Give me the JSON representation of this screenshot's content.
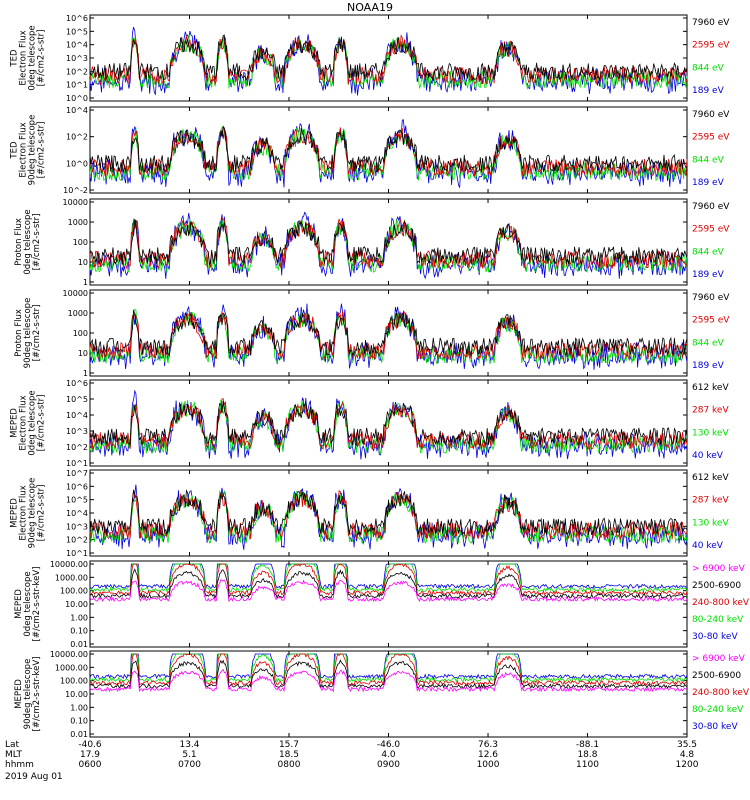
{
  "title": "NOAA19",
  "colors": {
    "black": "#000000",
    "red": "#e00000",
    "green": "#00e000",
    "blue": "#0000e0",
    "magenta": "#ff00ff"
  },
  "chart_data": [
    {
      "type": "line",
      "ylabel": [
        "TED",
        "Electron Flux",
        "0deg telescope",
        "[#/cm2-s-str]"
      ],
      "ytick_labels": [
        "10^6",
        "10^5",
        "10^4",
        "10^3",
        "10^2",
        "10^1",
        "10^0"
      ],
      "ylim_log10": [
        0,
        6
      ],
      "legend": [
        {
          "label": "7960 eV",
          "color": "black"
        },
        {
          "label": "2595 eV",
          "color": "red"
        },
        {
          "label": "844 eV",
          "color": "green"
        },
        {
          "label": "189 eV",
          "color": "blue"
        }
      ],
      "bumps": [
        {
          "t": 0.075,
          "w": 0.007,
          "peak": 2.5
        },
        {
          "t": 0.163,
          "w": 0.03,
          "peak": 2.3
        },
        {
          "t": 0.222,
          "w": 0.01,
          "peak": 2.5
        },
        {
          "t": 0.29,
          "w": 0.02,
          "peak": 1.6
        },
        {
          "t": 0.355,
          "w": 0.03,
          "peak": 2.3
        },
        {
          "t": 0.42,
          "w": 0.012,
          "peak": 2.4
        },
        {
          "t": 0.52,
          "w": 0.028,
          "peak": 2.3
        },
        {
          "t": 0.7,
          "w": 0.022,
          "peak": 2.0
        }
      ]
    },
    {
      "type": "line",
      "ylabel": [
        "TED",
        "Electron Flux",
        "90deg telescope",
        "[#/cm2-s-str]"
      ],
      "ytick_labels": [
        "10^4",
        "10^2",
        "10^0",
        "10^-2"
      ],
      "ylim_log10": [
        -2,
        4.5
      ],
      "legend": [
        {
          "label": "7960 eV",
          "color": "black"
        },
        {
          "label": "2595 eV",
          "color": "red"
        },
        {
          "label": "844 eV",
          "color": "green"
        },
        {
          "label": "189 eV",
          "color": "blue"
        }
      ]
    },
    {
      "type": "line",
      "ylabel": [
        "Proton Flux",
        "0deg telescope",
        "[#/cm2-s-str]"
      ],
      "ytick_labels": [
        "10000",
        "1000",
        "100",
        "10",
        "1"
      ],
      "ylim_log10": [
        0,
        4
      ],
      "legend": [
        {
          "label": "7960 eV",
          "color": "black"
        },
        {
          "label": "2595 eV",
          "color": "red"
        },
        {
          "label": "844 eV",
          "color": "green"
        },
        {
          "label": "189 eV",
          "color": "blue"
        }
      ]
    },
    {
      "type": "line",
      "ylabel": [
        "Proton Flux",
        "90deg telescope",
        "[#/cm2-s-str]"
      ],
      "ytick_labels": [
        "10000",
        "1000",
        "100",
        "10",
        "1"
      ],
      "ylim_log10": [
        0,
        4
      ],
      "legend": [
        {
          "label": "7960 eV",
          "color": "black"
        },
        {
          "label": "2595 eV",
          "color": "red"
        },
        {
          "label": "844 eV",
          "color": "green"
        },
        {
          "label": "189 eV",
          "color": "blue"
        }
      ]
    },
    {
      "type": "line",
      "ylabel": [
        "MEPED",
        "Electron Flux",
        "0deg telescope",
        "[#/cm2-s-str]"
      ],
      "ytick_labels": [
        "10^6",
        "10^5",
        "10^4",
        "10^3",
        "10^2",
        "10^1"
      ],
      "ylim_log10": [
        1,
        6
      ],
      "legend": [
        {
          "label": "612 keV",
          "color": "black"
        },
        {
          "label": "287 keV",
          "color": "red"
        },
        {
          "label": "130 keV",
          "color": "green"
        },
        {
          "label": "40 keV",
          "color": "blue"
        }
      ]
    },
    {
      "type": "line",
      "ylabel": [
        "MEPED",
        "Electron Flux",
        "90deg telescope",
        "[#/cm2-s-str]"
      ],
      "ytick_labels": [
        "10^7",
        "10^6",
        "10^5",
        "10^4",
        "10^3",
        "10^2",
        "10^1"
      ],
      "ylim_log10": [
        1,
        7
      ],
      "legend": [
        {
          "label": "612 keV",
          "color": "black"
        },
        {
          "label": "287 keV",
          "color": "red"
        },
        {
          "label": "130 keV",
          "color": "green"
        },
        {
          "label": "40 keV",
          "color": "blue"
        }
      ]
    },
    {
      "type": "line",
      "ylabel": [
        "MEPED",
        "0deg telescope",
        "[#/cm2-s-str-keV]"
      ],
      "ytick_labels": [
        "10000.00",
        "1000.00",
        "100.00",
        "10.00",
        "1.00",
        "0.10",
        "0.01"
      ],
      "ylim_log10": [
        -2,
        4
      ],
      "legend": [
        {
          "label": "> 6900 keV",
          "color": "magenta"
        },
        {
          "label": "2500-6900",
          "color": "black"
        },
        {
          "label": "240-800 keV",
          "color": "red"
        },
        {
          "label": "80-240 keV",
          "color": "green"
        },
        {
          "label": "30-80 keV",
          "color": "blue"
        }
      ]
    },
    {
      "type": "line",
      "ylabel": [
        "MEPED",
        "90deg telescope",
        "[#/cm2-s-str-keV]"
      ],
      "ytick_labels": [
        "10000.00",
        "1000.00",
        "100.00",
        "10.00",
        "1.00",
        "0.10",
        "0.01"
      ],
      "ylim_log10": [
        -2,
        4
      ],
      "legend": [
        {
          "label": "> 6900 keV",
          "color": "magenta"
        },
        {
          "label": "2500-6900",
          "color": "black"
        },
        {
          "label": "240-800 keV",
          "color": "red"
        },
        {
          "label": "80-240 keV",
          "color": "green"
        },
        {
          "label": "30-80 keV",
          "color": "blue"
        }
      ]
    }
  ],
  "x_axis": {
    "row_labels": [
      "Lat",
      "MLT",
      "hhmm",
      "2019 Aug 01"
    ],
    "ticks": [
      {
        "frac": 0.0,
        "lat": "-40.6",
        "mlt": "17.9",
        "time": "0600"
      },
      {
        "frac": 0.1667,
        "lat": "13.4",
        "mlt": "5.1",
        "time": "0700"
      },
      {
        "frac": 0.3333,
        "lat": "15.7",
        "mlt": "18.5",
        "time": "0800"
      },
      {
        "frac": 0.5,
        "lat": "-46.0",
        "mlt": "4.0",
        "time": "0900"
      },
      {
        "frac": 0.6667,
        "lat": "76.3",
        "mlt": "12.6",
        "time": "1000"
      },
      {
        "frac": 0.8333,
        "lat": "-88.1",
        "mlt": "18.8",
        "time": "1100"
      },
      {
        "frac": 1.0,
        "lat": "35.5",
        "mlt": "4.8",
        "time": "1200"
      }
    ]
  }
}
